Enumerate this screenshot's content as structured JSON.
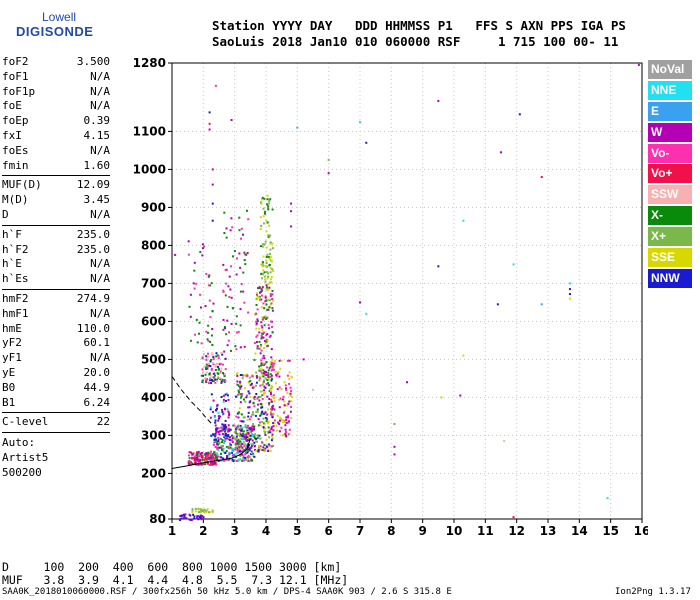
{
  "logo": {
    "line1": "Lowell",
    "line2": "DIGISONDE"
  },
  "header": {
    "line1": "Station YYYY DAY   DDD HHMMSS P1   FFS S AXN PPS IGA PS",
    "line2": "SaoLuis 2018 Jan10 010 060000 RSF     1 715 100 00- 11"
  },
  "params_group1": [
    {
      "k": "foF2",
      "v": "3.500"
    },
    {
      "k": "foF1",
      "v": "N/A"
    },
    {
      "k": "foF1p",
      "v": "N/A"
    },
    {
      "k": "foE",
      "v": "N/A"
    },
    {
      "k": "foEp",
      "v": "0.39"
    },
    {
      "k": "fxI",
      "v": "4.15"
    },
    {
      "k": "foEs",
      "v": "N/A"
    },
    {
      "k": "fmin",
      "v": "1.60"
    }
  ],
  "params_group2": [
    {
      "k": "MUF(D)",
      "v": "12.09"
    },
    {
      "k": "M(D)",
      "v": "3.45"
    },
    {
      "k": "D",
      "v": "N/A"
    }
  ],
  "params_group3": [
    {
      "k": "h`F",
      "v": "235.0"
    },
    {
      "k": "h`F2",
      "v": "235.0"
    },
    {
      "k": "h`E",
      "v": "N/A"
    },
    {
      "k": "h`Es",
      "v": "N/A"
    }
  ],
  "params_group4": [
    {
      "k": "hmF2",
      "v": "274.9"
    },
    {
      "k": "hmF1",
      "v": "N/A"
    },
    {
      "k": "hmE",
      "v": "110.0"
    },
    {
      "k": "yF2",
      "v": "60.1"
    },
    {
      "k": "yF1",
      "v": "N/A"
    },
    {
      "k": "yE",
      "v": "20.0"
    },
    {
      "k": "B0",
      "v": "44.9"
    },
    {
      "k": "B1",
      "v": "6.24"
    }
  ],
  "params_group5": [
    {
      "k": "C-level",
      "v": "22"
    }
  ],
  "auto": {
    "line1": "Auto:",
    "line2": "Artist5",
    "line3": "500200"
  },
  "legend": [
    {
      "label": "NoVal",
      "color": "#a0a0a0"
    },
    {
      "label": "NNE",
      "color": "#22e0f0"
    },
    {
      "label": "E",
      "color": "#3aa0f0"
    },
    {
      "label": "W",
      "color": "#b400b4"
    },
    {
      "label": "Vo-",
      "color": "#ff30b0"
    },
    {
      "label": "Vo+",
      "color": "#f0104a"
    },
    {
      "label": "SSW",
      "color": "#f8b0b0"
    },
    {
      "label": "X-",
      "color": "#0a8a0a"
    },
    {
      "label": "X+",
      "color": "#7ab84a"
    },
    {
      "label": "SSE",
      "color": "#d8d800"
    },
    {
      "label": "NNW",
      "color": "#1a1ad0"
    }
  ],
  "bottom": {
    "row1": "D     100  200  400  600  800 1000 1500 3000 [km]",
    "row2": "MUF   3.8  3.9  4.1  4.4  4.8  5.5  7.3 12.1 [MHz]"
  },
  "footer": {
    "left": "SAA0K_2018010060000.RSF / 300fx256h 50 kHz 5.0 km / DPS-4 SAA0K 903 / 2.6 S 315.8 E",
    "right": "Ion2Png 1.3.17"
  },
  "chart_data": {
    "type": "scatter",
    "xlim": [
      1,
      16
    ],
    "ylim": [
      80,
      1280
    ],
    "x_ticks": [
      "1",
      "2",
      "3",
      "4",
      "5",
      "6",
      "7",
      "8",
      "9",
      "10",
      "11",
      "12",
      "13",
      "14",
      "15",
      "16"
    ],
    "y_ticks": [
      {
        "v": 80,
        "label": "80"
      },
      {
        "v": 200,
        "label": "200"
      },
      {
        "v": 300,
        "label": "300"
      },
      {
        "v": 400,
        "label": "400"
      },
      {
        "v": 500,
        "label": "500"
      },
      {
        "v": 600,
        "label": "600"
      },
      {
        "v": 700,
        "label": "700"
      },
      {
        "v": 800,
        "label": "800"
      },
      {
        "v": 900,
        "label": "900"
      },
      {
        "v": 1000,
        "label": "1000"
      },
      {
        "v": 1100,
        "label": "1100"
      },
      {
        "v": 1280,
        "label": "1280"
      }
    ],
    "grid": true,
    "clusters": [
      {
        "x": [
          1.5,
          2.4
        ],
        "y": [
          225,
          260
        ],
        "n": 180,
        "colors": [
          "#b400b4",
          "#ff30b0",
          "#f0104a",
          "#0a8a0a"
        ]
      },
      {
        "x": [
          2.3,
          3.6
        ],
        "y": [
          235,
          330
        ],
        "n": 320,
        "colors": [
          "#b400b4",
          "#ff30b0",
          "#0a8a0a",
          "#7ab84a",
          "#1a1ad0",
          "#22e0f0"
        ]
      },
      {
        "x": [
          3.0,
          4.2
        ],
        "y": [
          260,
          470
        ],
        "n": 320,
        "colors": [
          "#b400b4",
          "#ff30b0",
          "#0a8a0a",
          "#7ab84a",
          "#d8d800",
          "#1a1ad0"
        ]
      },
      {
        "x": [
          3.6,
          4.2
        ],
        "y": [
          460,
          700
        ],
        "n": 160,
        "colors": [
          "#b400b4",
          "#ff30b0",
          "#0a8a0a",
          "#d8d800"
        ]
      },
      {
        "x": [
          3.8,
          4.2
        ],
        "y": [
          700,
          940
        ],
        "n": 90,
        "colors": [
          "#d8d800",
          "#0a8a0a",
          "#7ab84a"
        ]
      },
      {
        "x": [
          4.1,
          4.8
        ],
        "y": [
          300,
          500
        ],
        "n": 120,
        "colors": [
          "#b400b4",
          "#ff30b0",
          "#d8d800"
        ]
      },
      {
        "x": [
          1.9,
          2.7
        ],
        "y": [
          440,
          520
        ],
        "n": 110,
        "colors": [
          "#f8b0b0",
          "#ff30b0",
          "#0a8a0a",
          "#1a1ad0"
        ]
      },
      {
        "x": [
          2.2,
          2.8
        ],
        "y": [
          300,
          420
        ],
        "n": 70,
        "colors": [
          "#1a1ad0",
          "#22e0f0",
          "#b400b4"
        ]
      },
      {
        "x": [
          2.6,
          3.4
        ],
        "y": [
          520,
          900
        ],
        "n": 70,
        "colors": [
          "#0a8a0a",
          "#b400b4",
          "#ff30b0"
        ]
      },
      {
        "x": [
          1.2,
          2.0
        ],
        "y": [
          80,
          95
        ],
        "n": 40,
        "colors": [
          "#1a1ad0",
          "#b400b4"
        ]
      },
      {
        "x": [
          1.6,
          2.3
        ],
        "y": [
          100,
          110
        ],
        "n": 30,
        "colors": [
          "#d8d800",
          "#7ab84a"
        ]
      },
      {
        "x": [
          1.5,
          2.3
        ],
        "y": [
          540,
          830
        ],
        "n": 45,
        "colors": [
          "#ff30b0",
          "#b400b4",
          "#0a8a0a"
        ]
      }
    ],
    "scattered_points": [
      {
        "x": 2.2,
        "y": 1150,
        "c": "#1a1ad0"
      },
      {
        "x": 2.2,
        "y": 1120,
        "c": "#f0104a"
      },
      {
        "x": 2.2,
        "y": 1105,
        "c": "#b400b4"
      },
      {
        "x": 2.4,
        "y": 1220,
        "c": "#ff30b0"
      },
      {
        "x": 2.9,
        "y": 1130,
        "c": "#b400b4"
      },
      {
        "x": 5.0,
        "y": 1110,
        "c": "#3aa0f0"
      },
      {
        "x": 6.0,
        "y": 1025,
        "c": "#7ab84a"
      },
      {
        "x": 6.0,
        "y": 990,
        "c": "#b400b4"
      },
      {
        "x": 7.0,
        "y": 1125,
        "c": "#22e0f0"
      },
      {
        "x": 7.2,
        "y": 1070,
        "c": "#1a1ad0"
      },
      {
        "x": 9.5,
        "y": 1180,
        "c": "#b400b4"
      },
      {
        "x": 11.5,
        "y": 1045,
        "c": "#b400b4"
      },
      {
        "x": 12.1,
        "y": 1145,
        "c": "#1a1ad0"
      },
      {
        "x": 12.8,
        "y": 980,
        "c": "#f0104a"
      },
      {
        "x": 10.3,
        "y": 865,
        "c": "#22e0f0"
      },
      {
        "x": 9.5,
        "y": 745,
        "c": "#1a1ad0"
      },
      {
        "x": 11.9,
        "y": 750,
        "c": "#22e0f0"
      },
      {
        "x": 11.4,
        "y": 645,
        "c": "#1a1ad0"
      },
      {
        "x": 12.8,
        "y": 645,
        "c": "#3aa0f0"
      },
      {
        "x": 13.7,
        "y": 700,
        "c": "#22e0f0"
      },
      {
        "x": 13.7,
        "y": 685,
        "c": "#1a1ad0"
      },
      {
        "x": 13.7,
        "y": 672,
        "c": "#1a1ad0"
      },
      {
        "x": 13.7,
        "y": 660,
        "c": "#d8d800"
      },
      {
        "x": 7.0,
        "y": 650,
        "c": "#b400b4"
      },
      {
        "x": 7.2,
        "y": 620,
        "c": "#22e0f0"
      },
      {
        "x": 10.3,
        "y": 510,
        "c": "#d8d800"
      },
      {
        "x": 8.5,
        "y": 440,
        "c": "#b400b4"
      },
      {
        "x": 10.2,
        "y": 405,
        "c": "#b400b4"
      },
      {
        "x": 9.6,
        "y": 400,
        "c": "#d8d800"
      },
      {
        "x": 8.1,
        "y": 330,
        "c": "#7ab84a"
      },
      {
        "x": 8.1,
        "y": 270,
        "c": "#b400b4"
      },
      {
        "x": 8.1,
        "y": 250,
        "c": "#b400b4"
      },
      {
        "x": 11.6,
        "y": 285,
        "c": "#f8b0b0"
      },
      {
        "x": 11.9,
        "y": 85,
        "c": "#f0104a"
      },
      {
        "x": 14.9,
        "y": 135,
        "c": "#22e0f0"
      },
      {
        "x": 15.9,
        "y": 1275,
        "c": "#b400b4"
      },
      {
        "x": 4.8,
        "y": 910,
        "c": "#b400b4"
      },
      {
        "x": 4.8,
        "y": 890,
        "c": "#b400b4"
      },
      {
        "x": 4.8,
        "y": 850,
        "c": "#b400b4"
      },
      {
        "x": 2.3,
        "y": 1000,
        "c": "#b400b4"
      },
      {
        "x": 2.3,
        "y": 960,
        "c": "#b400b4"
      },
      {
        "x": 2.3,
        "y": 910,
        "c": "#1a1ad0"
      },
      {
        "x": 2.3,
        "y": 865,
        "c": "#1a1ad0"
      },
      {
        "x": 1.1,
        "y": 775,
        "c": "#b400b4"
      },
      {
        "x": 5.5,
        "y": 420,
        "c": "#f8b0b0"
      },
      {
        "x": 5.2,
        "y": 500,
        "c": "#b400b4"
      }
    ],
    "traces": [
      {
        "style": "solid",
        "points": [
          [
            1.0,
            213
          ],
          [
            1.5,
            220
          ],
          [
            2.0,
            228
          ],
          [
            2.5,
            234
          ],
          [
            2.9,
            240
          ],
          [
            3.2,
            250
          ],
          [
            3.4,
            265
          ],
          [
            3.5,
            292
          ]
        ]
      },
      {
        "style": "dashed",
        "points": [
          [
            1.0,
            455
          ],
          [
            1.3,
            420
          ],
          [
            1.6,
            390
          ],
          [
            1.9,
            365
          ],
          [
            2.1,
            345
          ],
          [
            2.3,
            328
          ]
        ]
      }
    ]
  }
}
